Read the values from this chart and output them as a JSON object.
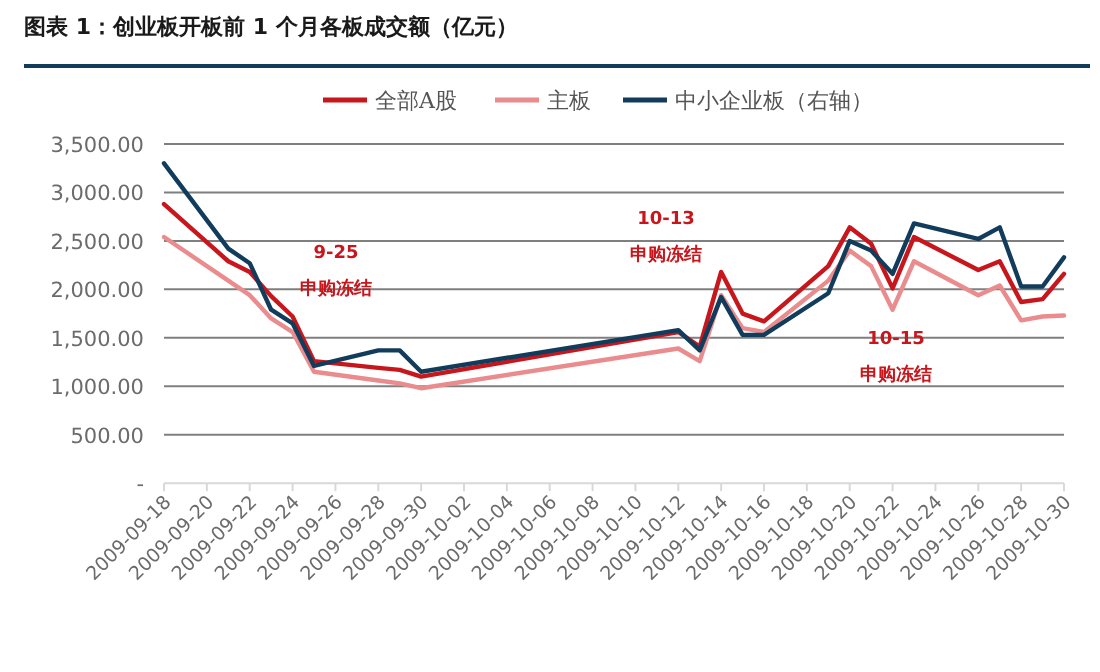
{
  "chart_data": {
    "type": "line",
    "title": "图表 1：创业板开板前 1 个月各板成交额（亿元）",
    "x": [
      "2009-09-18",
      "2009-09-21",
      "2009-09-22",
      "2009-09-23",
      "2009-09-24",
      "2009-09-25",
      "2009-09-28",
      "2009-09-29",
      "2009-09-30",
      "2009-10-12",
      "2009-10-13",
      "2009-10-14",
      "2009-10-15",
      "2009-10-16",
      "2009-10-19",
      "2009-10-20",
      "2009-10-21",
      "2009-10-22",
      "2009-10-23",
      "2009-10-26",
      "2009-10-27",
      "2009-10-28",
      "2009-10-29",
      "2009-10-30"
    ],
    "series": [
      {
        "name": "全部A股",
        "color": "#c8161d",
        "values": [
          2880,
          2290,
          2180,
          1930,
          1720,
          1260,
          1190,
          1170,
          1100,
          1560,
          1410,
          2180,
          1750,
          1670,
          2240,
          2640,
          2470,
          2010,
          2540,
          2200,
          2290,
          1870,
          1900,
          2160
        ]
      },
      {
        "name": "主板",
        "color": "#ea8c8e",
        "values": [
          2540,
          2090,
          1940,
          1700,
          1560,
          1150,
          1060,
          1030,
          980,
          1390,
          1260,
          1940,
          1600,
          1560,
          2090,
          2400,
          2240,
          1790,
          2290,
          1940,
          2040,
          1680,
          1720,
          1730
        ]
      },
      {
        "name": "中小企业板（右轴）",
        "color": "#123c5c",
        "values": [
          3300,
          2420,
          2270,
          1790,
          1650,
          1210,
          1370,
          1370,
          1150,
          1580,
          1370,
          1920,
          1530,
          1530,
          1960,
          2500,
          2400,
          2160,
          2680,
          2520,
          2640,
          2030,
          2030,
          2330
        ]
      }
    ],
    "xlim": [
      "2009-09-18",
      "2009-10-30"
    ],
    "xticks": [
      "2009-09-18",
      "2009-09-20",
      "2009-09-22",
      "2009-09-24",
      "2009-09-26",
      "2009-09-28",
      "2009-09-30",
      "2009-10-02",
      "2009-10-04",
      "2009-10-06",
      "2009-10-08",
      "2009-10-10",
      "2009-10-12",
      "2009-10-14",
      "2009-10-16",
      "2009-10-18",
      "2009-10-20",
      "2009-10-22",
      "2009-10-24",
      "2009-10-26",
      "2009-10-28",
      "2009-10-30"
    ],
    "ylim": [
      0,
      3500
    ],
    "yticks": [
      {
        "value": 0,
        "label": "-"
      },
      {
        "value": 500,
        "label": "500.00"
      },
      {
        "value": 1000,
        "label": "1,000.00"
      },
      {
        "value": 1500,
        "label": "1,500.00"
      },
      {
        "value": 2000,
        "label": "2,000.00"
      },
      {
        "value": 2500,
        "label": "2,500.00"
      },
      {
        "value": 3000,
        "label": "3,000.00"
      },
      {
        "value": 3500,
        "label": "3,500.00"
      }
    ],
    "grid": "y",
    "legend": "top",
    "marker": "none",
    "line_style": "solid",
    "annotations": [
      "9-25",
      "申购冻结",
      "10-13",
      "申购冻结",
      "10-15",
      "申购冻结"
    ]
  }
}
